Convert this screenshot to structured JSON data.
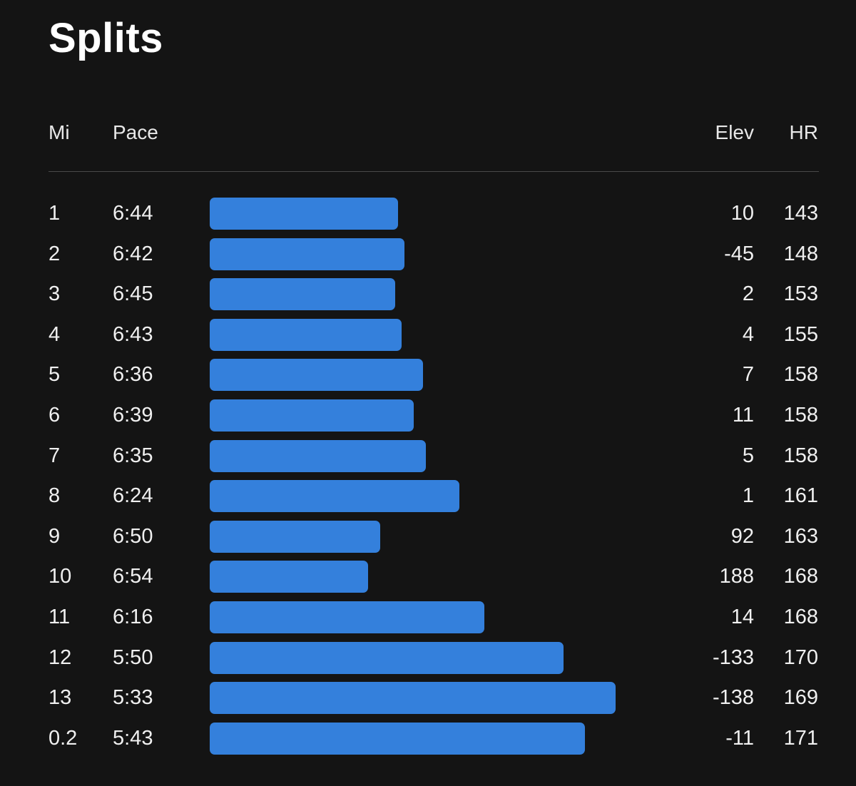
{
  "title": "Splits",
  "headers": {
    "mi": "Mi",
    "pace": "Pace",
    "elev": "Elev",
    "hr": "HR"
  },
  "bar_color": "#3480dc",
  "splits": [
    {
      "mi": "1",
      "pace": "6:44",
      "elev": "10",
      "hr": "143"
    },
    {
      "mi": "2",
      "pace": "6:42",
      "elev": "-45",
      "hr": "148"
    },
    {
      "mi": "3",
      "pace": "6:45",
      "elev": "2",
      "hr": "153"
    },
    {
      "mi": "4",
      "pace": "6:43",
      "elev": "4",
      "hr": "155"
    },
    {
      "mi": "5",
      "pace": "6:36",
      "elev": "7",
      "hr": "158"
    },
    {
      "mi": "6",
      "pace": "6:39",
      "elev": "11",
      "hr": "158"
    },
    {
      "mi": "7",
      "pace": "6:35",
      "elev": "5",
      "hr": "158"
    },
    {
      "mi": "8",
      "pace": "6:24",
      "elev": "1",
      "hr": "161"
    },
    {
      "mi": "9",
      "pace": "6:50",
      "elev": "92",
      "hr": "163"
    },
    {
      "mi": "10",
      "pace": "6:54",
      "elev": "188",
      "hr": "168"
    },
    {
      "mi": "11",
      "pace": "6:16",
      "elev": "14",
      "hr": "168"
    },
    {
      "mi": "12",
      "pace": "5:50",
      "elev": "-133",
      "hr": "170"
    },
    {
      "mi": "13",
      "pace": "5:33",
      "elev": "-138",
      "hr": "169"
    },
    {
      "mi": "0.2",
      "pace": "5:43",
      "elev": "-11",
      "hr": "171"
    }
  ]
}
